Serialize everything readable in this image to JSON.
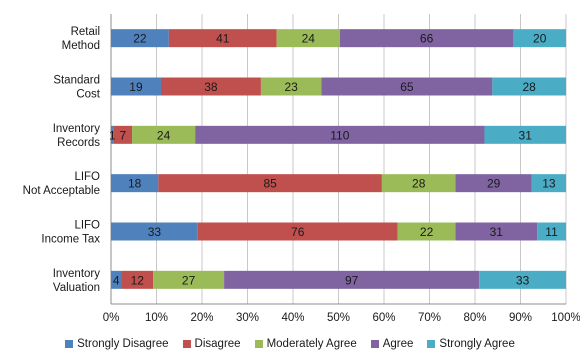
{
  "chart_data": {
    "type": "bar",
    "orientation": "horizontal",
    "stacked": "percent",
    "categories": [
      [
        "Retail",
        "Method"
      ],
      [
        "Standard",
        "Cost"
      ],
      [
        "Inventory",
        "Records"
      ],
      [
        "LIFO",
        "Not Acceptable"
      ],
      [
        "LIFO",
        "Income Tax"
      ],
      [
        "Inventory",
        "Valuation"
      ]
    ],
    "series": [
      {
        "name": "Strongly Disagree",
        "color": "#4f81bd",
        "values": [
          22,
          19,
          1,
          18,
          33,
          4
        ]
      },
      {
        "name": "Disagree",
        "color": "#c0504d",
        "values": [
          41,
          38,
          7,
          85,
          76,
          12
        ]
      },
      {
        "name": "Moderately Agree",
        "color": "#9bbb59",
        "values": [
          24,
          23,
          24,
          28,
          22,
          27
        ]
      },
      {
        "name": "Agree",
        "color": "#8064a2",
        "values": [
          66,
          65,
          110,
          29,
          31,
          97
        ]
      },
      {
        "name": "Strongly Agree",
        "color": "#4bacc6",
        "values": [
          20,
          28,
          31,
          13,
          11,
          33
        ]
      }
    ],
    "xaxis": {
      "min": 0,
      "max": 100,
      "ticks": [
        "0%",
        "10%",
        "20%",
        "30%",
        "40%",
        "50%",
        "60%",
        "70%",
        "80%",
        "90%",
        "100%"
      ]
    },
    "gridlines": true,
    "legend_position": "bottom"
  }
}
